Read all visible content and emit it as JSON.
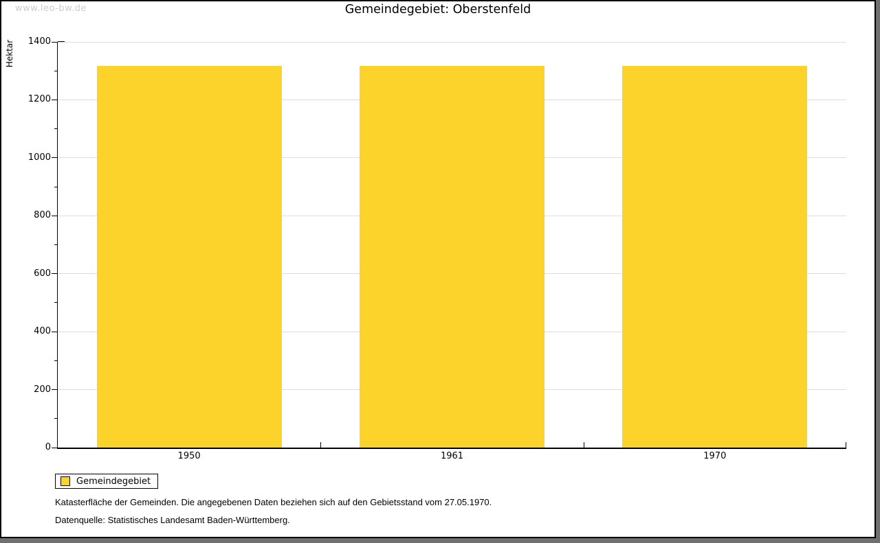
{
  "watermark": "www.leo-bw.de",
  "chart_data": {
    "type": "bar",
    "title": "Gemeindegebiet: Oberstenfeld",
    "categories": [
      "1950",
      "1961",
      "1970"
    ],
    "series": [
      {
        "name": "Gemeindegebiet",
        "values": [
          1318,
          1318,
          1318
        ]
      }
    ],
    "xlabel": "",
    "ylabel": "Hektar",
    "ylim": [
      0,
      1400
    ],
    "ytick_major": 200,
    "ytick_minor": 100,
    "grid": true,
    "legend_position": "bottom-left",
    "bar_color": "#fcd32b"
  },
  "legend": {
    "label": "Gemeindegebiet",
    "swatch_color": "#fcd32b"
  },
  "footer": {
    "line1": "Katasterfläche der Gemeinden. Die angegebenen Daten beziehen sich auf den Gebietsstand vom 27.05.1970.",
    "line2": "Datenquelle: Statistisches Landesamt Baden-Württemberg."
  },
  "colors": {
    "bar": "#fcd32b",
    "gridline": "#dcdcdc",
    "axis": "#000000",
    "watermark": "#cccccc",
    "window_shadow": "#707070"
  }
}
